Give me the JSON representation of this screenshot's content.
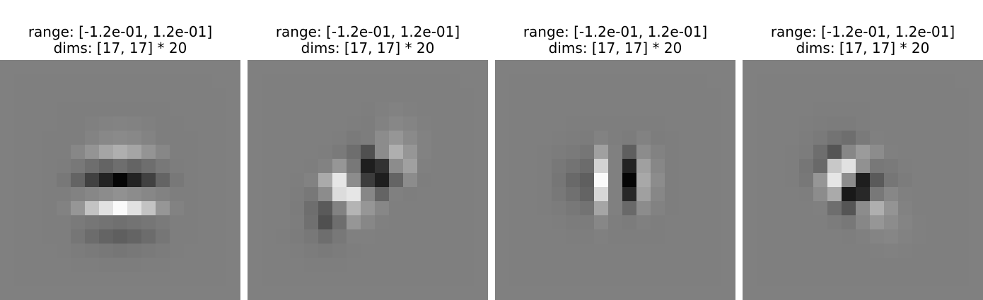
{
  "panels": [
    {
      "range": "range: [-1.2e-01, 1.2e-01]",
      "dims": "dims: [17, 17] * 20",
      "pixels": [
        [
          128,
          128,
          128,
          128,
          128,
          128,
          128,
          128,
          128,
          128,
          128,
          128,
          128,
          128,
          128,
          128,
          128
        ],
        [
          128,
          127,
          127,
          127,
          127,
          127,
          127,
          127,
          127,
          127,
          127,
          127,
          127,
          127,
          127,
          128,
          128
        ],
        [
          128,
          127,
          127,
          127,
          127,
          127,
          127,
          127,
          127,
          127,
          127,
          127,
          127,
          127,
          127,
          127,
          128
        ],
        [
          128,
          127,
          127,
          127,
          126,
          126,
          126,
          126,
          126,
          126,
          126,
          126,
          127,
          127,
          127,
          127,
          128
        ],
        [
          128,
          127,
          127,
          127,
          126,
          126,
          128,
          130,
          131,
          130,
          128,
          126,
          126,
          127,
          127,
          127,
          128
        ],
        [
          128,
          127,
          127,
          126,
          126,
          126,
          131,
          136,
          138,
          136,
          131,
          126,
          126,
          126,
          127,
          127,
          128
        ],
        [
          128,
          127,
          127,
          126,
          126,
          135,
          148,
          165,
          175,
          165,
          148,
          135,
          126,
          126,
          127,
          127,
          128
        ],
        [
          128,
          127,
          127,
          126,
          125,
          120,
          110,
          100,
          110,
          100,
          110,
          120,
          125,
          126,
          127,
          127,
          128
        ],
        [
          128,
          127,
          127,
          126,
          120,
          100,
          65,
          35,
          5,
          35,
          65,
          100,
          120,
          126,
          127,
          127,
          128
        ],
        [
          128,
          127,
          127,
          126,
          126,
          130,
          135,
          140,
          145,
          140,
          135,
          130,
          126,
          126,
          127,
          127,
          128
        ],
        [
          128,
          127,
          127,
          126,
          130,
          150,
          195,
          225,
          250,
          225,
          195,
          150,
          130,
          126,
          127,
          127,
          128
        ],
        [
          128,
          127,
          127,
          126,
          126,
          122,
          118,
          115,
          112,
          115,
          118,
          122,
          126,
          126,
          127,
          127,
          128
        ],
        [
          128,
          127,
          127,
          126,
          126,
          118,
          108,
          100,
          95,
          100,
          108,
          118,
          126,
          126,
          127,
          127,
          128
        ],
        [
          128,
          127,
          127,
          127,
          126,
          124,
          122,
          120,
          118,
          120,
          122,
          124,
          126,
          127,
          127,
          127,
          128
        ],
        [
          128,
          127,
          127,
          127,
          127,
          126,
          126,
          125,
          125,
          125,
          126,
          126,
          127,
          127,
          127,
          127,
          128
        ],
        [
          128,
          127,
          127,
          127,
          127,
          127,
          127,
          127,
          127,
          127,
          127,
          127,
          127,
          127,
          127,
          127,
          128
        ],
        [
          128,
          128,
          128,
          128,
          128,
          128,
          128,
          128,
          128,
          128,
          128,
          128,
          128,
          128,
          128,
          128,
          128
        ]
      ]
    },
    {
      "range": "range: [-1.2e-01, 1.2e-01]",
      "dims": "dims: [17, 17] * 20",
      "pixels": [
        [
          128,
          128,
          128,
          128,
          128,
          128,
          128,
          128,
          128,
          128,
          128,
          128,
          128,
          128,
          128,
          128,
          128
        ],
        [
          128,
          127,
          127,
          127,
          127,
          127,
          127,
          127,
          127,
          127,
          127,
          127,
          127,
          127,
          127,
          128,
          128
        ],
        [
          128,
          127,
          127,
          127,
          127,
          127,
          127,
          127,
          127,
          127,
          127,
          127,
          127,
          127,
          127,
          127,
          128
        ],
        [
          128,
          127,
          127,
          127,
          127,
          127,
          127,
          127,
          126,
          128,
          130,
          128,
          127,
          127,
          127,
          127,
          128
        ],
        [
          128,
          127,
          127,
          127,
          127,
          127,
          127,
          126,
          125,
          130,
          135,
          132,
          128,
          127,
          127,
          127,
          128
        ],
        [
          128,
          127,
          127,
          127,
          127,
          127,
          126,
          122,
          125,
          140,
          150,
          138,
          130,
          127,
          127,
          127,
          128
        ],
        [
          128,
          127,
          127,
          127,
          127,
          126,
          122,
          110,
          80,
          140,
          175,
          150,
          130,
          127,
          127,
          127,
          128
        ],
        [
          128,
          127,
          127,
          127,
          126,
          130,
          150,
          120,
          30,
          50,
          140,
          160,
          128,
          127,
          127,
          127,
          128
        ],
        [
          128,
          127,
          127,
          126,
          130,
          170,
          230,
          140,
          60,
          30,
          100,
          140,
          126,
          127,
          127,
          127,
          128
        ],
        [
          128,
          127,
          127,
          125,
          120,
          140,
          220,
          230,
          135,
          100,
          128,
          126,
          127,
          127,
          127,
          127,
          128
        ],
        [
          128,
          127,
          127,
          124,
          110,
          90,
          130,
          180,
          150,
          135,
          127,
          127,
          127,
          127,
          127,
          127,
          128
        ],
        [
          128,
          127,
          127,
          125,
          112,
          80,
          110,
          150,
          135,
          128,
          127,
          127,
          127,
          127,
          127,
          127,
          128
        ],
        [
          128,
          127,
          126,
          124,
          120,
          110,
          120,
          128,
          128,
          127,
          127,
          127,
          127,
          127,
          127,
          127,
          128
        ],
        [
          128,
          127,
          127,
          126,
          124,
          122,
          124,
          126,
          127,
          127,
          127,
          127,
          127,
          127,
          127,
          127,
          128
        ],
        [
          128,
          127,
          127,
          127,
          126,
          126,
          126,
          127,
          127,
          127,
          127,
          127,
          127,
          127,
          127,
          127,
          128
        ],
        [
          128,
          127,
          127,
          127,
          127,
          127,
          127,
          127,
          127,
          127,
          127,
          127,
          127,
          127,
          127,
          127,
          128
        ],
        [
          128,
          128,
          128,
          128,
          128,
          128,
          128,
          128,
          128,
          128,
          128,
          128,
          128,
          128,
          128,
          128,
          128
        ]
      ]
    },
    {
      "range": "range: [-1.2e-01, 1.2e-01]",
      "dims": "dims: [17, 17] * 20",
      "pixels": [
        [
          128,
          128,
          128,
          128,
          128,
          128,
          128,
          128,
          128,
          128,
          128,
          128,
          128,
          128,
          128,
          128,
          128
        ],
        [
          128,
          127,
          127,
          127,
          127,
          127,
          127,
          127,
          127,
          127,
          127,
          127,
          127,
          127,
          127,
          128,
          128
        ],
        [
          128,
          127,
          127,
          127,
          127,
          127,
          127,
          127,
          127,
          127,
          127,
          127,
          127,
          127,
          127,
          127,
          128
        ],
        [
          128,
          127,
          127,
          127,
          127,
          127,
          127,
          127,
          127,
          127,
          127,
          127,
          127,
          127,
          127,
          127,
          128
        ],
        [
          128,
          127,
          127,
          127,
          127,
          126,
          126,
          126,
          126,
          126,
          126,
          126,
          127,
          127,
          127,
          127,
          128
        ],
        [
          128,
          127,
          127,
          127,
          126,
          125,
          124,
          130,
          126,
          124,
          130,
          125,
          126,
          127,
          127,
          127,
          128
        ],
        [
          128,
          127,
          127,
          126,
          124,
          122,
          118,
          160,
          128,
          95,
          140,
          130,
          126,
          127,
          127,
          127,
          128
        ],
        [
          128,
          127,
          127,
          126,
          120,
          115,
          108,
          210,
          128,
          35,
          160,
          135,
          126,
          127,
          127,
          127,
          128
        ],
        [
          128,
          127,
          127,
          126,
          118,
          105,
          95,
          250,
          128,
          5,
          168,
          140,
          126,
          127,
          127,
          127,
          128
        ],
        [
          128,
          127,
          127,
          126,
          120,
          112,
          100,
          215,
          128,
          40,
          160,
          135,
          126,
          127,
          127,
          127,
          128
        ],
        [
          128,
          127,
          127,
          126,
          124,
          120,
          115,
          165,
          128,
          105,
          140,
          130,
          126,
          127,
          127,
          127,
          128
        ],
        [
          128,
          127,
          127,
          127,
          126,
          124,
          124,
          135,
          126,
          124,
          128,
          126,
          127,
          127,
          127,
          127,
          128
        ],
        [
          128,
          127,
          127,
          127,
          127,
          126,
          126,
          128,
          126,
          126,
          126,
          126,
          127,
          127,
          127,
          127,
          128
        ],
        [
          128,
          127,
          127,
          127,
          127,
          127,
          127,
          127,
          127,
          127,
          127,
          127,
          127,
          127,
          127,
          127,
          128
        ],
        [
          128,
          127,
          127,
          127,
          127,
          127,
          127,
          127,
          127,
          127,
          127,
          127,
          127,
          127,
          127,
          127,
          128
        ],
        [
          128,
          127,
          127,
          127,
          127,
          127,
          127,
          127,
          127,
          127,
          127,
          127,
          127,
          127,
          127,
          127,
          128
        ],
        [
          128,
          128,
          128,
          128,
          128,
          128,
          128,
          128,
          128,
          128,
          128,
          128,
          128,
          128,
          128,
          128,
          128
        ]
      ]
    },
    {
      "range": "range: [-1.2e-01, 1.2e-01]",
      "dims": "dims: [17, 17] * 20",
      "pixels": [
        [
          128,
          128,
          128,
          128,
          128,
          128,
          128,
          128,
          128,
          128,
          128,
          128,
          128,
          128,
          128,
          128,
          128
        ],
        [
          128,
          127,
          127,
          127,
          127,
          127,
          127,
          127,
          127,
          127,
          127,
          127,
          127,
          127,
          127,
          128,
          128
        ],
        [
          128,
          127,
          127,
          127,
          127,
          127,
          127,
          127,
          127,
          127,
          127,
          127,
          127,
          127,
          127,
          127,
          128
        ],
        [
          128,
          127,
          127,
          127,
          127,
          126,
          126,
          126,
          126,
          127,
          127,
          127,
          127,
          127,
          127,
          127,
          128
        ],
        [
          128,
          127,
          127,
          127,
          126,
          125,
          124,
          124,
          126,
          127,
          127,
          127,
          127,
          127,
          127,
          127,
          128
        ],
        [
          128,
          127,
          127,
          127,
          125,
          122,
          115,
          110,
          122,
          128,
          127,
          127,
          127,
          127,
          127,
          127,
          128
        ],
        [
          128,
          127,
          127,
          126,
          124,
          110,
          85,
          135,
          155,
          140,
          128,
          127,
          127,
          127,
          127,
          127,
          128
        ],
        [
          128,
          127,
          127,
          126,
          118,
          105,
          200,
          225,
          145,
          120,
          122,
          126,
          127,
          127,
          127,
          127,
          128
        ],
        [
          128,
          127,
          127,
          126,
          120,
          150,
          230,
          140,
          30,
          90,
          118,
          124,
          127,
          127,
          127,
          127,
          128
        ],
        [
          128,
          127,
          127,
          127,
          126,
          140,
          170,
          25,
          40,
          120,
          135,
          128,
          127,
          127,
          127,
          127,
          128
        ],
        [
          128,
          127,
          127,
          127,
          127,
          128,
          110,
          85,
          140,
          175,
          148,
          130,
          127,
          127,
          127,
          127,
          128
        ],
        [
          128,
          127,
          127,
          127,
          127,
          127,
          124,
          120,
          135,
          150,
          140,
          132,
          128,
          127,
          127,
          127,
          128
        ],
        [
          128,
          127,
          127,
          127,
          127,
          127,
          127,
          126,
          128,
          132,
          134,
          130,
          128,
          127,
          127,
          127,
          128
        ],
        [
          128,
          127,
          127,
          127,
          127,
          127,
          127,
          127,
          127,
          128,
          129,
          128,
          127,
          127,
          127,
          127,
          128
        ],
        [
          128,
          127,
          127,
          127,
          127,
          127,
          127,
          127,
          127,
          127,
          127,
          127,
          127,
          127,
          127,
          127,
          128
        ],
        [
          128,
          127,
          127,
          127,
          127,
          127,
          127,
          127,
          127,
          127,
          127,
          127,
          127,
          127,
          127,
          127,
          128
        ],
        [
          128,
          128,
          128,
          128,
          128,
          128,
          128,
          128,
          128,
          128,
          128,
          128,
          128,
          128,
          128,
          128,
          128
        ]
      ]
    }
  ]
}
